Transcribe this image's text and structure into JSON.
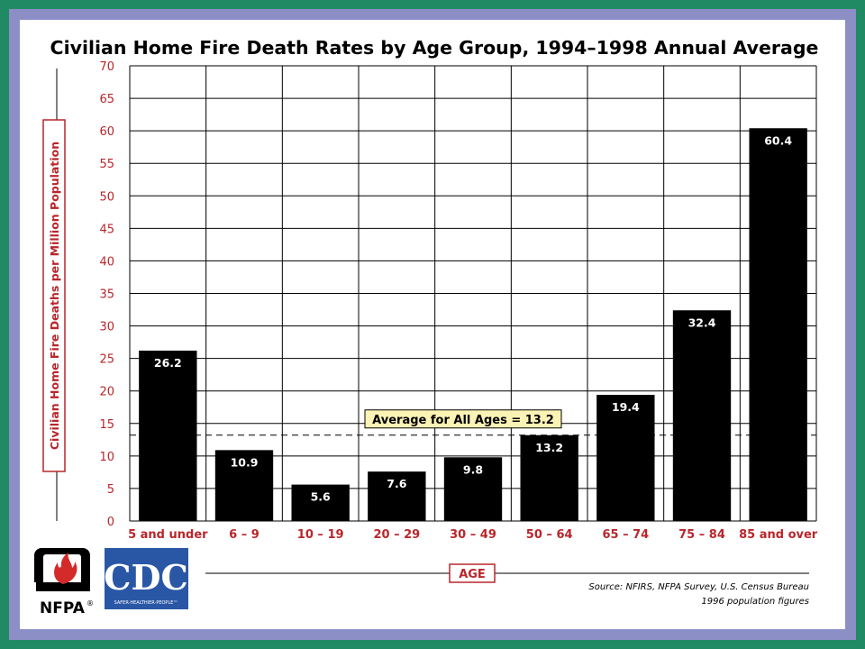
{
  "chart_data": {
    "type": "bar",
    "title": "Civilian Home Fire Death Rates by Age Group, 1994–1998 Annual Average",
    "xlabel": "AGE",
    "ylabel": "Civilian Home Fire Deaths per Million Population",
    "categories": [
      "5 and under",
      "6 – 9",
      "10 – 19",
      "20 – 29",
      "30 – 49",
      "50 – 64",
      "65 – 74",
      "75 – 84",
      "85 and over"
    ],
    "values": [
      26.2,
      10.9,
      5.6,
      7.6,
      9.8,
      13.2,
      19.4,
      32.4,
      60.4
    ],
    "value_labels": [
      "26.2",
      "10.9",
      "5.6",
      "7.6",
      "9.8",
      "13.2",
      "19.4",
      "32.4",
      "60.4"
    ],
    "ylim": [
      0,
      70
    ],
    "yticks": [
      0,
      5,
      10,
      15,
      20,
      25,
      30,
      35,
      40,
      45,
      50,
      55,
      60,
      65,
      70
    ],
    "grid": true,
    "bar_color": "#000000",
    "annotation": {
      "text": "Average for All Ages = 13.2",
      "value": 13.2
    }
  },
  "source": {
    "line1": "Source: NFIRS, NFPA Survey, U.S. Census Bureau",
    "line2": "1996 population figures"
  },
  "logos": {
    "nfpa": "NFPA",
    "nfpa_mark": "®",
    "cdc": "CDC",
    "cdc_tagline": "SAFER·HEALTHIER·PEOPLE™"
  },
  "colors": {
    "outer_border": "#1f8a63",
    "inner_border": "#8b8fc6",
    "label_red": "#b8262b",
    "annotation_fill": "#fbf3b5",
    "cdc_blue": "#2a57a5"
  }
}
